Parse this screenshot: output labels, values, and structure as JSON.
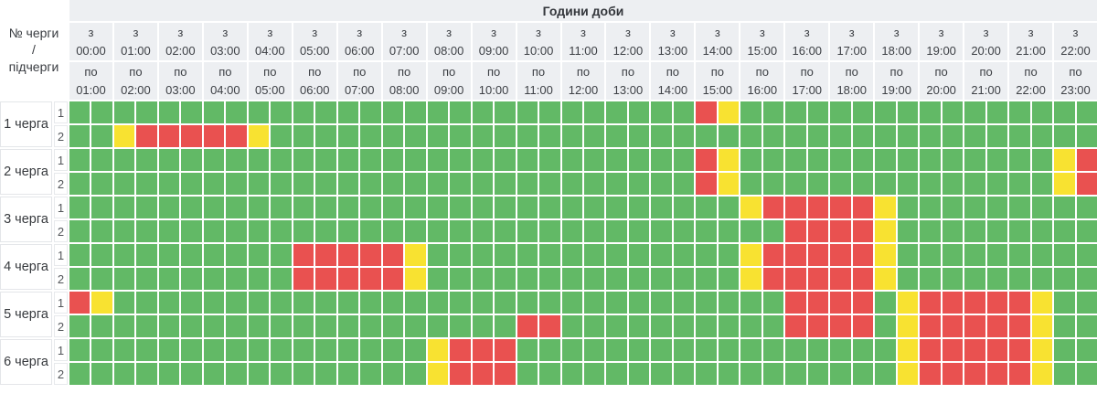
{
  "title": "Години доби",
  "corner_label": "№ черги\n/\nпідчерги",
  "column_prefix_from": "з",
  "column_prefix_to": "по",
  "columns": [
    {
      "from": "00:00",
      "to": "01:00"
    },
    {
      "from": "01:00",
      "to": "02:00"
    },
    {
      "from": "02:00",
      "to": "03:00"
    },
    {
      "from": "03:00",
      "to": "04:00"
    },
    {
      "from": "04:00",
      "to": "05:00"
    },
    {
      "from": "05:00",
      "to": "06:00"
    },
    {
      "from": "06:00",
      "to": "07:00"
    },
    {
      "from": "07:00",
      "to": "08:00"
    },
    {
      "from": "08:00",
      "to": "09:00"
    },
    {
      "from": "09:00",
      "to": "10:00"
    },
    {
      "from": "10:00",
      "to": "11:00"
    },
    {
      "from": "11:00",
      "to": "12:00"
    },
    {
      "from": "12:00",
      "to": "13:00"
    },
    {
      "from": "13:00",
      "to": "14:00"
    },
    {
      "from": "14:00",
      "to": "15:00"
    },
    {
      "from": "15:00",
      "to": "16:00"
    },
    {
      "from": "16:00",
      "to": "17:00"
    },
    {
      "from": "17:00",
      "to": "18:00"
    },
    {
      "from": "18:00",
      "to": "19:00"
    },
    {
      "from": "19:00",
      "to": "20:00"
    },
    {
      "from": "20:00",
      "to": "21:00"
    },
    {
      "from": "21:00",
      "to": "22:00"
    },
    {
      "from": "22:00",
      "to": "23:00"
    }
  ],
  "cell_legend": {
    "g": "power-on",
    "y": "possible-outage",
    "r": "outage"
  },
  "colors": {
    "on": "#62b966",
    "off": "#e95150",
    "maybe": "#f8e231",
    "header_bg": "#edeff2"
  },
  "queues": [
    {
      "label": "1 черга",
      "subqueues": [
        {
          "num": "1",
          "cells": "ggggggggggggggggggggggggggggrygggggggggggggggg"
        },
        {
          "num": "2",
          "cells": "ggyrrrrryggggggggggggggggggggggggggggggggggggg"
        }
      ]
    },
    {
      "label": "2 черга",
      "subqueues": [
        {
          "num": "1",
          "cells": "ggggggggggggggggggggggggggggryggggggggggggggyr"
        },
        {
          "num": "2",
          "cells": "ggggggggggggggggggggggggggggryggggggggggggggyr"
        }
      ]
    },
    {
      "label": "3 черга",
      "subqueues": [
        {
          "num": "1",
          "cells": "ggggggggggggggggggggggggggggggyrrrrryggggggggg"
        },
        {
          "num": "2",
          "cells": "ggggggggggggggggggggggggggggggggrrrryggggggggg"
        }
      ]
    },
    {
      "label": "4 черга",
      "subqueues": [
        {
          "num": "1",
          "cells": "ggggggggggrrrrryggggggggggggggyrrrrryggggggggg"
        },
        {
          "num": "2",
          "cells": "ggggggggggrrrrryggggggggggggggyrrrrryggggggggg"
        }
      ]
    },
    {
      "label": "5 черга",
      "subqueues": [
        {
          "num": "1",
          "cells": "ryggggggggggggggggggggggggggggggrrrrgyrrrrrygg"
        },
        {
          "num": "2",
          "cells": "ggggggggggggggggggggrrggggggggggrrrrgyrrrrrygg"
        }
      ]
    },
    {
      "label": "6 черга",
      "subqueues": [
        {
          "num": "1",
          "cells": "ggggggggggggggggyrrrgggggggggggggggggyrrrrrygg"
        },
        {
          "num": "2",
          "cells": "ggggggggggggggggyrrrgggggggggggggggggyrrrrrygg"
        }
      ]
    }
  ]
}
